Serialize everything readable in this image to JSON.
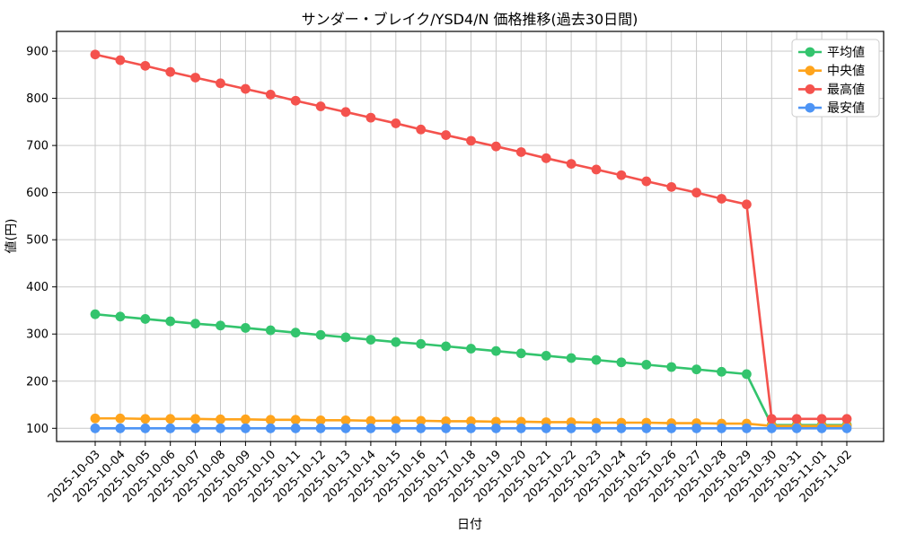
{
  "chart_data": {
    "type": "line",
    "title": "サンダー・ブレイク/YSD4/N 価格推移(過去30日間)",
    "xlabel": "日付",
    "ylabel": "値(円)",
    "categories": [
      "2025-10-03",
      "2025-10-04",
      "2025-10-05",
      "2025-10-06",
      "2025-10-07",
      "2025-10-08",
      "2025-10-09",
      "2025-10-10",
      "2025-10-11",
      "2025-10-12",
      "2025-10-13",
      "2025-10-14",
      "2025-10-15",
      "2025-10-16",
      "2025-10-17",
      "2025-10-18",
      "2025-10-19",
      "2025-10-20",
      "2025-10-21",
      "2025-10-22",
      "2025-10-23",
      "2025-10-24",
      "2025-10-25",
      "2025-10-26",
      "2025-10-27",
      "2025-10-28",
      "2025-10-29",
      "2025-10-30",
      "2025-10-31",
      "2025-11-01",
      "2025-11-02"
    ],
    "series": [
      {
        "name": "平均値",
        "color": "#33c46d",
        "values": [
          342,
          337,
          332,
          327,
          322,
          318,
          313,
          308,
          303,
          298,
          293,
          288,
          283,
          279,
          274,
          269,
          264,
          259,
          254,
          249,
          245,
          240,
          235,
          230,
          225,
          220,
          215,
          107,
          107,
          107,
          107
        ]
      },
      {
        "name": "中央値",
        "color": "#ffa41c",
        "values": [
          121,
          121,
          120,
          120,
          120,
          119,
          119,
          118,
          118,
          117,
          117,
          116,
          116,
          116,
          115,
          115,
          114,
          114,
          113,
          113,
          112,
          112,
          112,
          111,
          111,
          110,
          110,
          105,
          105,
          105,
          105
        ]
      },
      {
        "name": "最高値",
        "color": "#f4524d",
        "values": [
          893,
          881,
          869,
          856,
          844,
          832,
          820,
          808,
          795,
          783,
          771,
          759,
          747,
          734,
          722,
          710,
          698,
          686,
          673,
          661,
          649,
          637,
          624,
          612,
          600,
          587,
          575,
          120,
          120,
          120,
          120
        ]
      },
      {
        "name": "最安値",
        "color": "#4d94f5",
        "values": [
          100,
          100,
          100,
          100,
          100,
          100,
          100,
          100,
          100,
          100,
          100,
          100,
          100,
          100,
          100,
          100,
          100,
          100,
          100,
          100,
          100,
          100,
          100,
          100,
          100,
          100,
          100,
          100,
          100,
          100,
          100
        ]
      }
    ],
    "yticks": [
      100,
      200,
      300,
      400,
      500,
      600,
      700,
      800,
      900
    ],
    "ylim": [
      72,
      942
    ],
    "grid": true,
    "grid_color": "#c9c9c9",
    "spine_color": "#000000",
    "legend_position": "upper right"
  }
}
